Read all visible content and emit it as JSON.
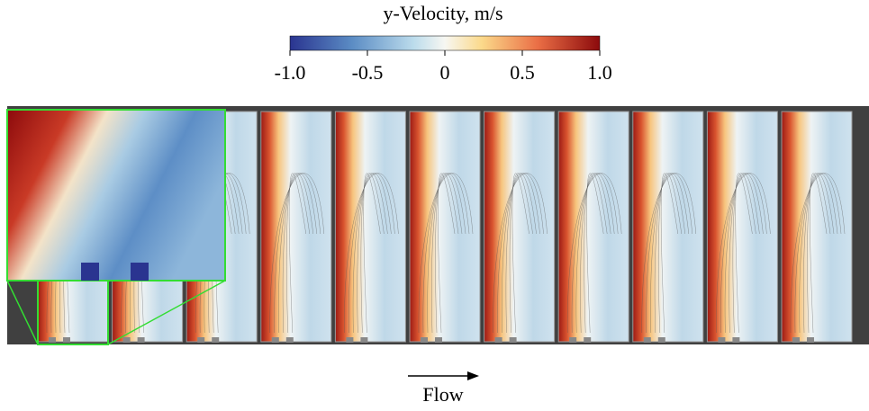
{
  "colorbar": {
    "title": "y-Velocity, m/s",
    "lim": [
      -1,
      1
    ],
    "ticks": [
      {
        "value": -1,
        "label": "-1.0"
      },
      -0.5,
      0,
      0.5,
      {
        "value": 1,
        "label": "1.0"
      }
    ]
  },
  "flow_label": "Flow"
}
